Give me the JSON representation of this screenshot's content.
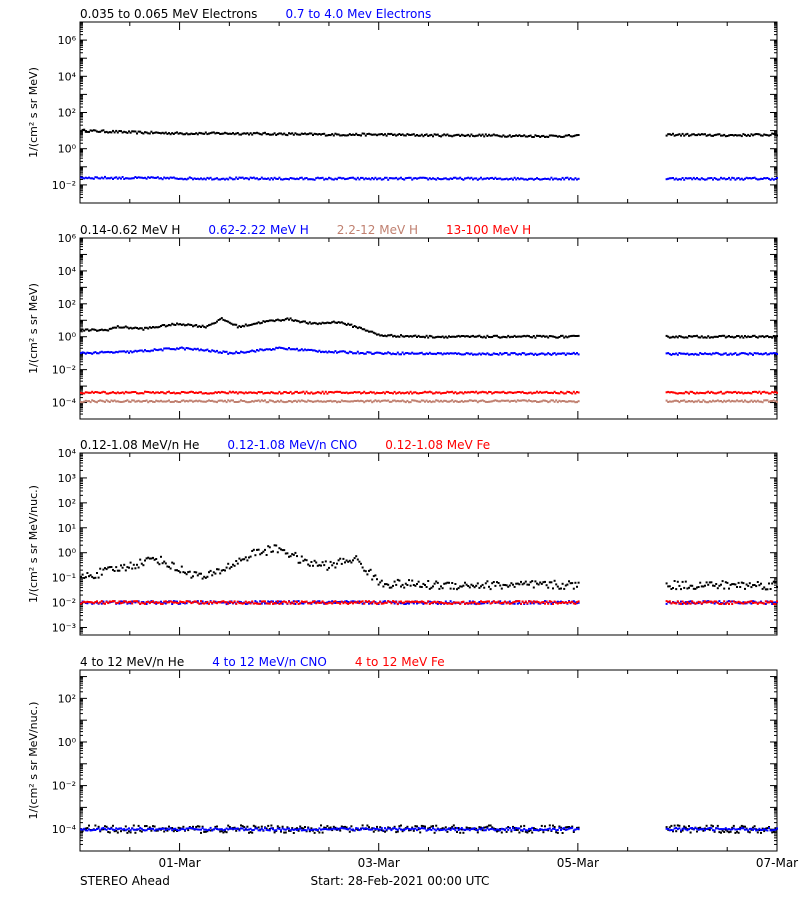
{
  "footer": {
    "left": "STEREO Ahead",
    "center": "Start: 28-Feb-2021 00:00 UTC"
  },
  "x_axis": {
    "start": "2021-02-28T00:00Z",
    "end": "2021-03-07T00:00Z",
    "ticks": [
      {
        "date": "2021-03-01T00:00Z",
        "label": "01-Mar"
      },
      {
        "date": "2021-03-03T00:00Z",
        "label": "03-Mar"
      },
      {
        "date": "2021-03-05T00:00Z",
        "label": "05-Mar"
      },
      {
        "date": "2021-03-07T00:00Z",
        "label": "07-Mar"
      }
    ],
    "minor_ticks": [
      "2021-02-28T12:00Z",
      "2021-03-01T12:00Z",
      "2021-03-02T00:00Z",
      "2021-03-02T12:00Z",
      "2021-03-03T12:00Z",
      "2021-03-04T00:00Z",
      "2021-03-04T12:00Z",
      "2021-03-05T12:00Z",
      "2021-03-06T00:00Z",
      "2021-03-06T12:00Z"
    ]
  },
  "data_gap": [
    "2021-03-05T00:00Z",
    "2021-03-05T21:00Z"
  ],
  "chart_data": [
    {
      "type": "scatter",
      "y_scale": "log",
      "ylabel": "1/(cm² s sr MeV)",
      "ylim": [
        0.001,
        10000000
      ],
      "y_ticks": [
        {
          "value": 0.01,
          "label": "10⁻²"
        },
        {
          "value": 1,
          "label": "10⁰"
        },
        {
          "value": 100,
          "label": "10²"
        },
        {
          "value": 10000,
          "label": "10⁴"
        },
        {
          "value": 1000000,
          "label": "10⁶"
        }
      ],
      "series": [
        {
          "name": "0.035 to 0.065 MeV Electrons",
          "color": "#000000",
          "x": [
            "2021-02-28T00:00Z",
            "2021-02-28T12:00Z",
            "2021-03-01T00:00Z",
            "2021-03-01T12:00Z",
            "2021-03-02T00:00Z",
            "2021-03-02T12:00Z",
            "2021-03-03T00:00Z",
            "2021-03-03T12:00Z",
            "2021-03-04T00:00Z",
            "2021-03-04T12:00Z",
            "2021-03-05T00:00Z",
            "2021-03-05T21:00Z",
            "2021-03-06T12:00Z",
            "2021-03-07T00:00Z"
          ],
          "y": [
            10,
            8,
            7,
            7,
            6.5,
            6,
            6,
            5.5,
            5.5,
            5,
            5,
            6,
            5.5,
            6
          ]
        },
        {
          "name": "0.7 to 4.0 Mev Electrons",
          "color": "#0000ff",
          "x": [
            "2021-02-28T00:00Z",
            "2021-03-01T00:00Z",
            "2021-03-02T00:00Z",
            "2021-03-03T00:00Z",
            "2021-03-04T00:00Z",
            "2021-03-05T00:00Z",
            "2021-03-05T21:00Z",
            "2021-03-07T00:00Z"
          ],
          "y": [
            0.025,
            0.023,
            0.022,
            0.022,
            0.022,
            0.022,
            0.022,
            0.022
          ]
        }
      ]
    },
    {
      "type": "scatter",
      "y_scale": "log",
      "ylabel": "1/(cm² s sr MeV)",
      "ylim": [
        1e-05,
        1000000
      ],
      "y_ticks": [
        {
          "value": 0.0001,
          "label": "10⁻⁴"
        },
        {
          "value": 0.01,
          "label": "10⁻²"
        },
        {
          "value": 1,
          "label": "10⁰"
        },
        {
          "value": 100,
          "label": "10²"
        },
        {
          "value": 10000,
          "label": "10⁴"
        },
        {
          "value": 1000000,
          "label": "10⁶"
        }
      ],
      "series": [
        {
          "name": "0.14-0.62 MeV H",
          "color": "#000000",
          "x": [
            "2021-02-28T00:00Z",
            "2021-02-28T06:00Z",
            "2021-02-28T09:00Z",
            "2021-02-28T15:00Z",
            "2021-02-28T21:00Z",
            "2021-03-01T00:00Z",
            "2021-03-01T06:00Z",
            "2021-03-01T10:00Z",
            "2021-03-01T14:00Z",
            "2021-03-01T20:00Z",
            "2021-03-02T02:00Z",
            "2021-03-02T08:00Z",
            "2021-03-02T14:00Z",
            "2021-03-02T20:00Z",
            "2021-03-03T00:00Z",
            "2021-03-03T12:00Z",
            "2021-03-04T00:00Z",
            "2021-03-05T00:00Z",
            "2021-03-05T21:00Z",
            "2021-03-07T00:00Z"
          ],
          "y": [
            2.5,
            2.5,
            4,
            3,
            5,
            6,
            4,
            12,
            4,
            8,
            12,
            6,
            8,
            3,
            1.2,
            1.0,
            1.0,
            1.0,
            1.0,
            1.0
          ]
        },
        {
          "name": "0.62-2.22 MeV H",
          "color": "#0000ff",
          "x": [
            "2021-02-28T00:00Z",
            "2021-02-28T12:00Z",
            "2021-03-01T00:00Z",
            "2021-03-01T06:00Z",
            "2021-03-01T12:00Z",
            "2021-03-02T00:00Z",
            "2021-03-02T12:00Z",
            "2021-03-03T00:00Z",
            "2021-03-04T00:00Z",
            "2021-03-05T00:00Z",
            "2021-03-05T21:00Z",
            "2021-03-07T00:00Z"
          ],
          "y": [
            0.1,
            0.12,
            0.2,
            0.15,
            0.1,
            0.2,
            0.12,
            0.1,
            0.09,
            0.09,
            0.09,
            0.09
          ]
        },
        {
          "name": "2.2-12 MeV H",
          "color": "#c08070",
          "x": [
            "2021-02-28T00:00Z",
            "2021-03-01T00:00Z",
            "2021-03-02T00:00Z",
            "2021-03-03T00:00Z",
            "2021-03-04T00:00Z",
            "2021-03-05T00:00Z",
            "2021-03-05T21:00Z",
            "2021-03-07T00:00Z"
          ],
          "y": [
            0.00012,
            0.00012,
            0.00012,
            0.00012,
            0.00012,
            0.00012,
            0.00012,
            0.00012
          ]
        },
        {
          "name": "13-100 MeV H",
          "color": "#ff0000",
          "x": [
            "2021-02-28T00:00Z",
            "2021-03-01T00:00Z",
            "2021-03-02T00:00Z",
            "2021-03-03T00:00Z",
            "2021-03-04T00:00Z",
            "2021-03-05T00:00Z",
            "2021-03-05T21:00Z",
            "2021-03-07T00:00Z"
          ],
          "y": [
            0.0004,
            0.0004,
            0.0004,
            0.0004,
            0.0004,
            0.0004,
            0.0004,
            0.0004
          ]
        }
      ]
    },
    {
      "type": "scatter",
      "y_scale": "log",
      "ylabel": "1/(cm² s sr MeV/nuc.)",
      "ylim": [
        0.0005,
        10000
      ],
      "y_ticks": [
        {
          "value": 0.001,
          "label": "10⁻³"
        },
        {
          "value": 0.01,
          "label": "10⁻²"
        },
        {
          "value": 0.1,
          "label": "10⁻¹"
        },
        {
          "value": 1,
          "label": "10⁰"
        },
        {
          "value": 10,
          "label": "10¹"
        },
        {
          "value": 100,
          "label": "10²"
        },
        {
          "value": 1000,
          "label": "10³"
        },
        {
          "value": 10000,
          "label": "10⁴"
        }
      ],
      "series": [
        {
          "name": "0.12-1.08 MeV/n He",
          "color": "#000000",
          "x": [
            "2021-02-28T00:00Z",
            "2021-02-28T12:00Z",
            "2021-02-28T18:00Z",
            "2021-03-01T00:00Z",
            "2021-03-01T06:00Z",
            "2021-03-01T12:00Z",
            "2021-03-01T18:00Z",
            "2021-03-02T00:00Z",
            "2021-03-02T06:00Z",
            "2021-03-02T12:00Z",
            "2021-03-02T18:00Z",
            "2021-03-03T00:00Z",
            "2021-03-03T12:00Z",
            "2021-03-04T00:00Z",
            "2021-03-04T12:00Z",
            "2021-03-05T00:00Z",
            "2021-03-05T21:00Z",
            "2021-03-06T12:00Z",
            "2021-03-07T00:00Z"
          ],
          "y": [
            0.1,
            0.3,
            0.6,
            0.2,
            0.1,
            0.3,
            1.0,
            1.5,
            0.4,
            0.3,
            0.6,
            0.06,
            0.05,
            0.05,
            0.05,
            0.05,
            0.05,
            0.05,
            0.05
          ]
        },
        {
          "name": "0.12-1.08 MeV/n CNO",
          "color": "#0000ff",
          "x": [
            "2021-02-28T00:00Z",
            "2021-03-01T00:00Z",
            "2021-03-02T00:00Z",
            "2021-03-03T00:00Z",
            "2021-03-04T00:00Z",
            "2021-03-05T00:00Z",
            "2021-03-05T21:00Z",
            "2021-03-07T00:00Z"
          ],
          "y": [
            0.01,
            0.01,
            0.01,
            0.01,
            0.01,
            0.01,
            0.01,
            0.01
          ]
        },
        {
          "name": "0.12-1.08 MeV Fe",
          "color": "#ff0000",
          "x": [
            "2021-02-28T00:00Z",
            "2021-03-01T00:00Z",
            "2021-03-02T00:00Z",
            "2021-03-03T00:00Z",
            "2021-03-04T00:00Z",
            "2021-03-05T00:00Z",
            "2021-03-05T21:00Z",
            "2021-03-07T00:00Z"
          ],
          "y": [
            0.01,
            0.01,
            0.01,
            0.01,
            0.01,
            0.01,
            0.01,
            0.01
          ]
        }
      ]
    },
    {
      "type": "scatter",
      "y_scale": "log",
      "ylabel": "1/(cm² s sr MeV/nuc.)",
      "ylim": [
        1e-05,
        2000
      ],
      "y_ticks": [
        {
          "value": 0.0001,
          "label": "10⁻⁴"
        },
        {
          "value": 0.01,
          "label": "10⁻²"
        },
        {
          "value": 1,
          "label": "10⁰"
        },
        {
          "value": 100,
          "label": "10²"
        }
      ],
      "series": [
        {
          "name": "4 to 12 MeV/n He",
          "color": "#000000",
          "x": [
            "2021-02-28T00:00Z",
            "2021-03-01T00:00Z",
            "2021-03-02T00:00Z",
            "2021-03-03T00:00Z",
            "2021-03-04T00:00Z",
            "2021-03-05T00:00Z",
            "2021-03-05T21:00Z",
            "2021-03-07T00:00Z"
          ],
          "y": [
            0.0001,
            0.0001,
            0.0001,
            0.0001,
            0.0001,
            0.0001,
            0.0001,
            0.0001
          ]
        },
        {
          "name": "4 to 12 MeV/n CNO",
          "color": "#0000ff",
          "x": [
            "2021-02-28T00:00Z",
            "2021-03-01T00:00Z",
            "2021-03-02T00:00Z",
            "2021-03-03T00:00Z",
            "2021-03-04T00:00Z",
            "2021-03-05T00:00Z",
            "2021-03-05T21:00Z",
            "2021-03-07T00:00Z"
          ],
          "y": [
            0.0001,
            0.0001,
            0.0001,
            0.0001,
            0.0001,
            0.0001,
            0.0001,
            0.0001
          ]
        },
        {
          "name": "4 to 12 MeV Fe",
          "color": "#ff0000",
          "x": [],
          "y": []
        }
      ]
    }
  ]
}
